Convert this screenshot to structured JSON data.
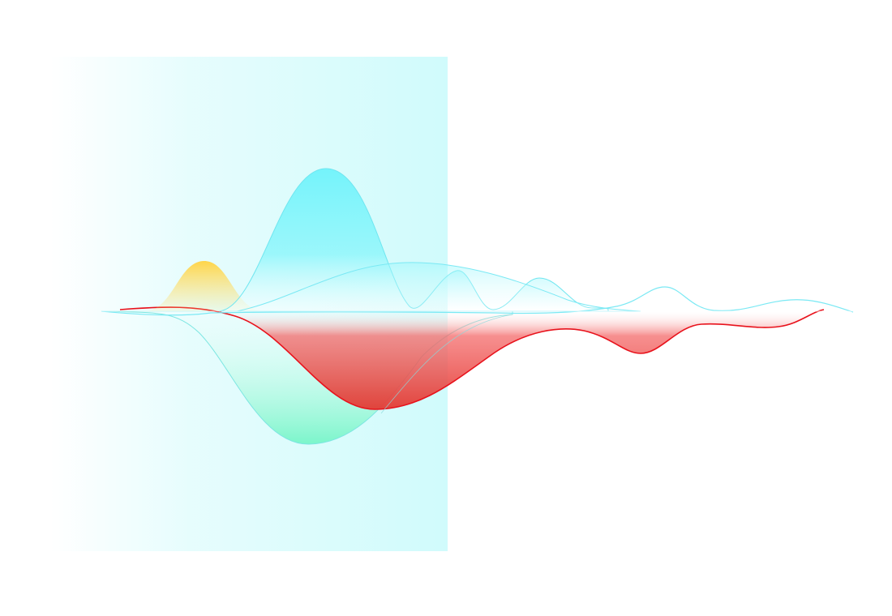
{
  "artwork": {
    "waves": [
      {
        "name": "yellow-bump",
        "color": "#ffd54a"
      },
      {
        "name": "cyan-peak",
        "color": "#6ff3fb"
      },
      {
        "name": "mint-trough",
        "color": "#76f5c8"
      },
      {
        "name": "red-wave",
        "color": "#e8121c"
      },
      {
        "name": "cyan-outline",
        "color": "#7be9f4"
      }
    ],
    "band": {
      "color": "#c8fafb"
    }
  }
}
